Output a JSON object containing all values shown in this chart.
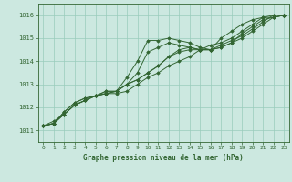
{
  "title": "Graphe pression niveau de la mer (hPa)",
  "xlim": [
    -0.5,
    23.5
  ],
  "ylim": [
    1010.5,
    1016.5
  ],
  "yticks": [
    1011,
    1012,
    1013,
    1014,
    1015,
    1016
  ],
  "xticks": [
    0,
    1,
    2,
    3,
    4,
    5,
    6,
    7,
    8,
    9,
    10,
    11,
    12,
    13,
    14,
    15,
    16,
    17,
    18,
    19,
    20,
    21,
    22,
    23
  ],
  "bg_color": "#cce8e0",
  "grid_color": "#99ccbb",
  "line_color": "#336633",
  "marker_color": "#336633",
  "series": [
    [
      1011.2,
      1011.3,
      1011.8,
      1012.2,
      1012.4,
      1012.5,
      1012.6,
      1012.7,
      1013.3,
      1014.0,
      1014.9,
      1014.9,
      1015.0,
      1014.9,
      1014.8,
      1014.6,
      1014.5,
      1015.0,
      1015.3,
      1015.6,
      1015.8,
      1015.9,
      1015.9,
      1016.0
    ],
    [
      1011.2,
      1011.3,
      1011.8,
      1012.2,
      1012.4,
      1012.5,
      1012.6,
      1012.7,
      1013.0,
      1013.5,
      1014.4,
      1014.6,
      1014.8,
      1014.7,
      1014.6,
      1014.5,
      1014.5,
      1014.6,
      1014.8,
      1015.2,
      1015.5,
      1015.8,
      1015.9,
      1016.0
    ],
    [
      1011.2,
      1011.3,
      1011.7,
      1012.1,
      1012.3,
      1012.5,
      1012.7,
      1012.7,
      1013.0,
      1013.2,
      1013.5,
      1013.8,
      1014.2,
      1014.5,
      1014.6,
      1014.5,
      1014.5,
      1014.6,
      1014.8,
      1015.0,
      1015.3,
      1015.6,
      1015.9,
      1016.0
    ],
    [
      1011.2,
      1011.3,
      1011.7,
      1012.1,
      1012.3,
      1012.5,
      1012.7,
      1012.7,
      1013.0,
      1013.2,
      1013.5,
      1013.8,
      1014.2,
      1014.4,
      1014.5,
      1014.5,
      1014.5,
      1014.7,
      1014.9,
      1015.1,
      1015.4,
      1015.7,
      1016.0,
      1016.0
    ],
    [
      1011.2,
      1011.4,
      1011.7,
      1012.1,
      1012.3,
      1012.5,
      1012.6,
      1012.6,
      1012.7,
      1013.0,
      1013.3,
      1013.5,
      1013.8,
      1014.0,
      1014.2,
      1014.5,
      1014.7,
      1014.8,
      1015.0,
      1015.3,
      1015.6,
      1015.9,
      1016.0,
      1016.0
    ]
  ]
}
